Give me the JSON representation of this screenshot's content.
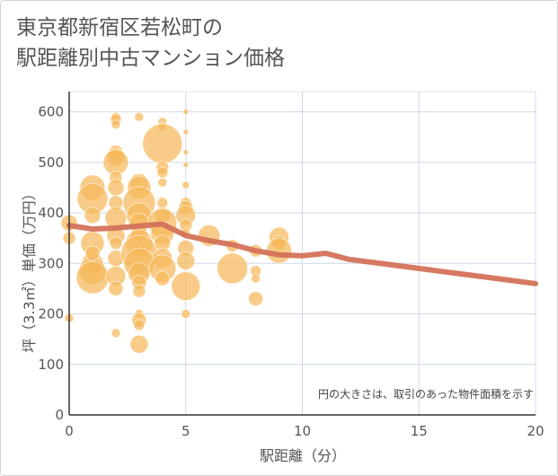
{
  "chart_data": {
    "type": "scatter",
    "title_lines": [
      "東京都新宿区若松町の",
      "駅距離別中古マンション価格"
    ],
    "xlabel": "駅距離（分）",
    "ylabel": "坪（3.3㎡）単価（万円）",
    "xlim": [
      0,
      20
    ],
    "ylim": [
      0,
      640
    ],
    "x_ticks": [
      0,
      5,
      10,
      15,
      20
    ],
    "y_ticks": [
      0,
      100,
      200,
      300,
      400,
      500,
      600
    ],
    "annotation": "円の大きさは、取引のあった物件面積を示す",
    "colors": {
      "bubble": "#f5b85a",
      "line": "#d4725a",
      "grid": "#cfd8e8",
      "axis": "#333333"
    },
    "trend_line": {
      "x": [
        0,
        1,
        2,
        3,
        4,
        5,
        6,
        7,
        8,
        9,
        10,
        11,
        12,
        13,
        14,
        15,
        16,
        17,
        18,
        19,
        20
      ],
      "y": [
        375,
        368,
        370,
        374,
        378,
        355,
        345,
        337,
        325,
        317,
        315,
        320,
        308,
        302,
        296,
        290,
        284,
        278,
        272,
        266,
        260
      ]
    },
    "bubbles": [
      {
        "x": 0,
        "y": 380,
        "r": 9
      },
      {
        "x": 0,
        "y": 350,
        "r": 7
      },
      {
        "x": 0,
        "y": 192,
        "r": 5
      },
      {
        "x": 1,
        "y": 450,
        "r": 14
      },
      {
        "x": 1,
        "y": 428,
        "r": 17
      },
      {
        "x": 1,
        "y": 395,
        "r": 9
      },
      {
        "x": 1,
        "y": 340,
        "r": 13
      },
      {
        "x": 1,
        "y": 300,
        "r": 12
      },
      {
        "x": 1,
        "y": 285,
        "r": 15
      },
      {
        "x": 1,
        "y": 272,
        "r": 18
      },
      {
        "x": 1,
        "y": 320,
        "r": 8
      },
      {
        "x": 2,
        "y": 590,
        "r": 5
      },
      {
        "x": 2,
        "y": 585,
        "r": 6
      },
      {
        "x": 2,
        "y": 575,
        "r": 5
      },
      {
        "x": 2,
        "y": 520,
        "r": 8
      },
      {
        "x": 2,
        "y": 510,
        "r": 10
      },
      {
        "x": 2,
        "y": 500,
        "r": 14
      },
      {
        "x": 2,
        "y": 470,
        "r": 7
      },
      {
        "x": 2,
        "y": 450,
        "r": 9
      },
      {
        "x": 2,
        "y": 420,
        "r": 8
      },
      {
        "x": 2,
        "y": 390,
        "r": 12
      },
      {
        "x": 2,
        "y": 355,
        "r": 10
      },
      {
        "x": 2,
        "y": 340,
        "r": 7
      },
      {
        "x": 2,
        "y": 310,
        "r": 9
      },
      {
        "x": 2,
        "y": 275,
        "r": 11
      },
      {
        "x": 2,
        "y": 250,
        "r": 8
      },
      {
        "x": 2,
        "y": 162,
        "r": 5
      },
      {
        "x": 3,
        "y": 590,
        "r": 5
      },
      {
        "x": 3,
        "y": 460,
        "r": 10
      },
      {
        "x": 3,
        "y": 450,
        "r": 13
      },
      {
        "x": 3,
        "y": 420,
        "r": 18
      },
      {
        "x": 3,
        "y": 395,
        "r": 14
      },
      {
        "x": 3,
        "y": 380,
        "r": 11
      },
      {
        "x": 3,
        "y": 360,
        "r": 9
      },
      {
        "x": 3,
        "y": 340,
        "r": 15
      },
      {
        "x": 3,
        "y": 320,
        "r": 20
      },
      {
        "x": 3,
        "y": 300,
        "r": 17
      },
      {
        "x": 3,
        "y": 280,
        "r": 12
      },
      {
        "x": 3,
        "y": 262,
        "r": 8
      },
      {
        "x": 3,
        "y": 245,
        "r": 7
      },
      {
        "x": 3,
        "y": 200,
        "r": 5
      },
      {
        "x": 3,
        "y": 188,
        "r": 8
      },
      {
        "x": 3,
        "y": 178,
        "r": 6
      },
      {
        "x": 3,
        "y": 140,
        "r": 10
      },
      {
        "x": 4,
        "y": 580,
        "r": 5
      },
      {
        "x": 4,
        "y": 570,
        "r": 5
      },
      {
        "x": 4,
        "y": 537,
        "r": 22
      },
      {
        "x": 4,
        "y": 490,
        "r": 7
      },
      {
        "x": 4,
        "y": 480,
        "r": 6
      },
      {
        "x": 4,
        "y": 460,
        "r": 5
      },
      {
        "x": 4,
        "y": 420,
        "r": 6
      },
      {
        "x": 4,
        "y": 395,
        "r": 9
      },
      {
        "x": 4,
        "y": 380,
        "r": 16
      },
      {
        "x": 4,
        "y": 360,
        "r": 13
      },
      {
        "x": 4,
        "y": 340,
        "r": 9
      },
      {
        "x": 4,
        "y": 310,
        "r": 11
      },
      {
        "x": 4,
        "y": 290,
        "r": 15
      },
      {
        "x": 4,
        "y": 270,
        "r": 8
      },
      {
        "x": 5,
        "y": 600,
        "r": 3
      },
      {
        "x": 5,
        "y": 560,
        "r": 3
      },
      {
        "x": 5,
        "y": 520,
        "r": 3
      },
      {
        "x": 5,
        "y": 495,
        "r": 3
      },
      {
        "x": 5,
        "y": 455,
        "r": 4
      },
      {
        "x": 5,
        "y": 420,
        "r": 6
      },
      {
        "x": 5,
        "y": 410,
        "r": 8
      },
      {
        "x": 5,
        "y": 395,
        "r": 11
      },
      {
        "x": 5,
        "y": 375,
        "r": 7
      },
      {
        "x": 5,
        "y": 360,
        "r": 5
      },
      {
        "x": 5,
        "y": 330,
        "r": 9
      },
      {
        "x": 5,
        "y": 305,
        "r": 10
      },
      {
        "x": 5,
        "y": 255,
        "r": 16
      },
      {
        "x": 5,
        "y": 200,
        "r": 5
      },
      {
        "x": 6,
        "y": 355,
        "r": 12
      },
      {
        "x": 7,
        "y": 335,
        "r": 7
      },
      {
        "x": 7,
        "y": 290,
        "r": 17
      },
      {
        "x": 8,
        "y": 325,
        "r": 7
      },
      {
        "x": 8,
        "y": 285,
        "r": 6
      },
      {
        "x": 8,
        "y": 270,
        "r": 5
      },
      {
        "x": 8,
        "y": 230,
        "r": 8
      },
      {
        "x": 9,
        "y": 352,
        "r": 11
      },
      {
        "x": 9,
        "y": 340,
        "r": 8
      },
      {
        "x": 9,
        "y": 325,
        "r": 14
      }
    ]
  }
}
